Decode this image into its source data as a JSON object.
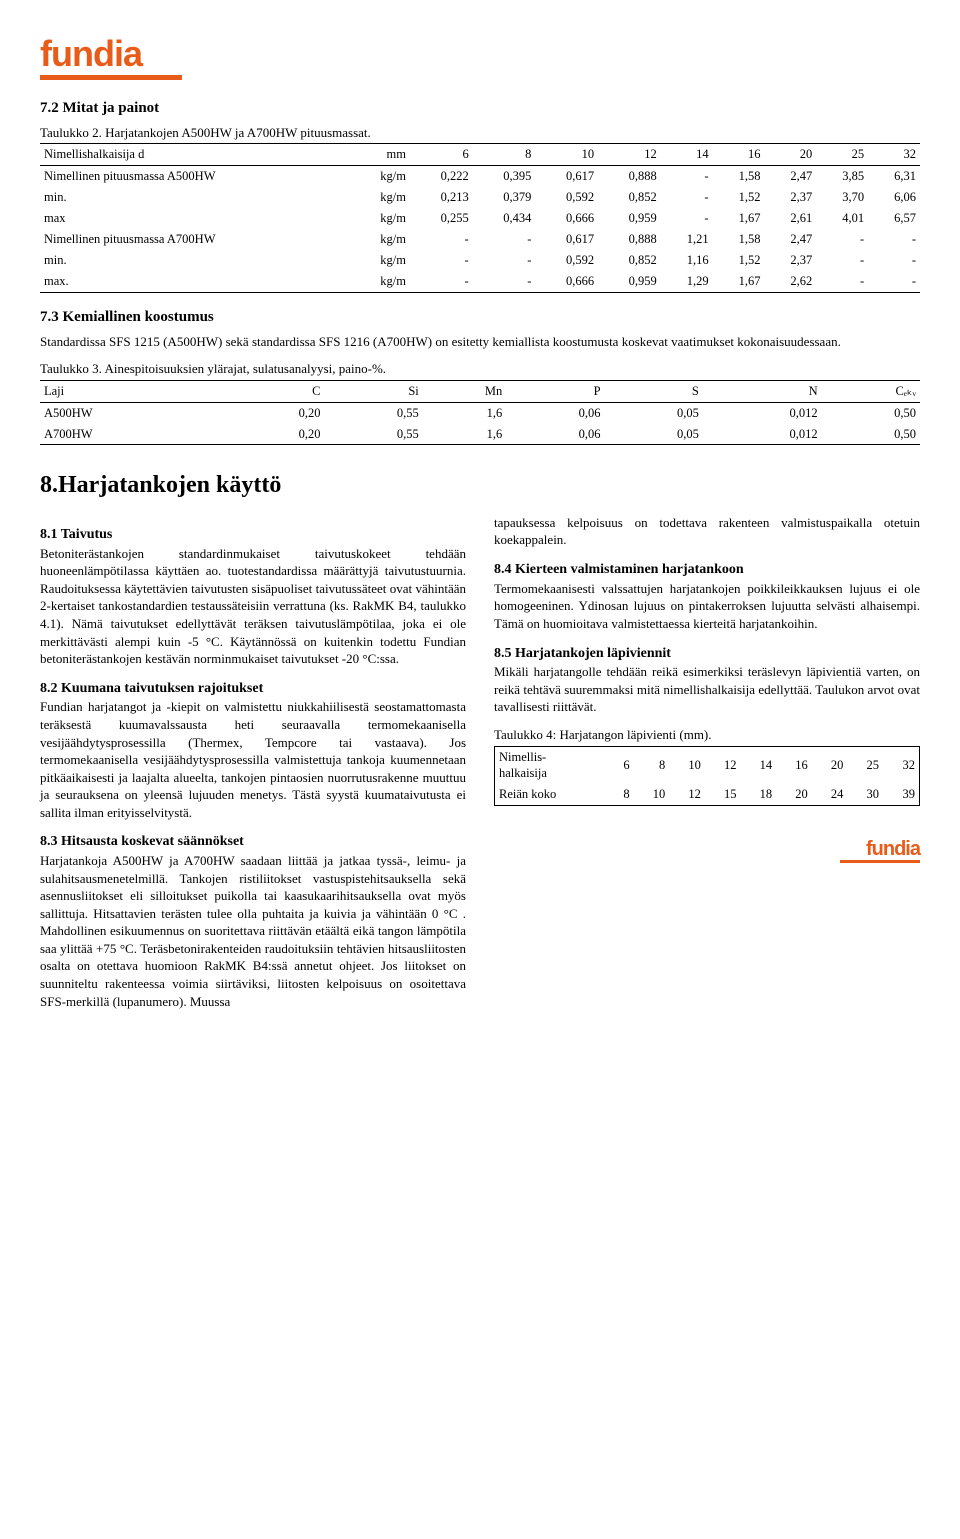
{
  "logo_text": "fundia",
  "sec72": {
    "title": "7.2 Mitat ja painot"
  },
  "table2": {
    "caption": "Taulukko 2. Harjatankojen A500HW ja A700HW pituusmassat.",
    "header": [
      "Nimellishalkaisija d",
      "mm",
      "6",
      "8",
      "10",
      "12",
      "14",
      "16",
      "20",
      "25",
      "32"
    ],
    "rows": [
      [
        "Nimellinen pituusmassa A500HW",
        "kg/m",
        "0,222",
        "0,395",
        "0,617",
        "0,888",
        "-",
        "1,58",
        "2,47",
        "3,85",
        "6,31"
      ],
      [
        "min.",
        "kg/m",
        "0,213",
        "0,379",
        "0,592",
        "0,852",
        "-",
        "1,52",
        "2,37",
        "3,70",
        "6,06"
      ],
      [
        "max",
        "kg/m",
        "0,255",
        "0,434",
        "0,666",
        "0,959",
        "-",
        "1,67",
        "2,61",
        "4,01",
        "6,57"
      ],
      [
        "Nimellinen pituusmassa A700HW",
        "kg/m",
        "-",
        "-",
        "0,617",
        "0,888",
        "1,21",
        "1,58",
        "2,47",
        "-",
        "-"
      ],
      [
        "min.",
        "kg/m",
        "-",
        "-",
        "0,592",
        "0,852",
        "1,16",
        "1,52",
        "2,37",
        "-",
        "-"
      ],
      [
        "max.",
        "kg/m",
        "-",
        "-",
        "0,666",
        "0,959",
        "1,29",
        "1,67",
        "2,62",
        "-",
        "-"
      ]
    ]
  },
  "sec73": {
    "title": "7.3 Kemiallinen koostumus",
    "body": "Standardissa SFS 1215 (A500HW) sekä standardissa SFS 1216 (A700HW) on esitetty kemiallista koostumusta koskevat vaatimukset kokonaisuudessaan."
  },
  "table3": {
    "caption": "Taulukko 3. Ainespitoisuuksien ylärajat, sulatusanalyysi, paino-%.",
    "header": [
      "Laji",
      "C",
      "Si",
      "Mn",
      "P",
      "S",
      "N",
      "Cₑₖᵥ"
    ],
    "rows": [
      [
        "A500HW",
        "0,20",
        "0,55",
        "1,6",
        "0,06",
        "0,05",
        "0,012",
        "0,50"
      ],
      [
        "A700HW",
        "0,20",
        "0,55",
        "1,6",
        "0,06",
        "0,05",
        "0,012",
        "0,50"
      ]
    ]
  },
  "sec8": {
    "title": "8.Harjatankojen käyttö"
  },
  "sec81": {
    "title": "8.1 Taivutus",
    "body": "Betoniterästankojen standardinmukaiset taivutuskokeet tehdään huoneenlämpötilassa käyttäen ao. tuotestandardissa määrättyjä taivutustuurnia. Raudoituksessa käytettävien taivutusten sisäpuoliset taivutussäteet ovat vähintään 2-kertaiset tankostandardien testaussäteisiin verrattuna (ks. RakMK B4, taulukko 4.1). Nämä taivutukset edellyttävät teräksen taivutuslämpötilaa, joka ei ole merkittävästi alempi kuin -5 °C. Käytännössä on kuitenkin todettu Fundian betoniterästankojen kestävän norminmukaiset taivutukset -20 °C:ssa."
  },
  "sec82": {
    "title": "8.2 Kuumana taivutuksen rajoitukset",
    "body": "Fundian harjatangot ja -kiepit on valmistettu niukkahiilisestä seostamattomasta teräksestä kuumavalssausta heti seuraavalla termomekaanisella vesijäähdytysprosessilla (Thermex, Tempcore tai vastaava). Jos termomekaanisella vesijäähdytysprosessilla valmistettuja tankoja kuumennetaan pitkäaikaisesti ja laajalta alueelta, tankojen pintaosien nuorrutusrakenne muuttuu ja seurauksena on yleensä lujuuden menetys. Tästä syystä kuumataivutusta ei sallita ilman erityisselvitystä."
  },
  "sec83": {
    "title": "8.3 Hitsausta koskevat säännökset",
    "body": "Harjatankoja A500HW ja A700HW saadaan liittää ja jatkaa tyssä-, leimu- ja sulahitsausmenetelmillä. Tankojen ristiliitokset vastuspistehitsauksella sekä asennusliitokset eli silloitukset puikolla tai kaasukaarihitsauksella ovat myös sallittuja. Hitsattavien terästen tulee olla puhtaita ja kuivia ja vähintään 0 °C . Mahdollinen esikuumennus on suoritettava riittävän etäältä eikä tangon lämpötila saa ylittää +75 °C. Teräsbetonirakenteiden raudoituksiin tehtävien hitsausliitosten osalta on otettava huomioon RakMK B4:ssä annetut ohjeet. Jos liitokset on suunniteltu rakenteessa voimia siirtäviksi, liitosten kelpoisuus on osoitettava SFS-merkillä (lupanumero). Muussa"
  },
  "sec83b": {
    "body": "tapauksessa kelpoisuus on todettava rakenteen valmistuspaikalla otetuin koekappalein."
  },
  "sec84": {
    "title": "8.4 Kierteen valmistaminen harjatankoon",
    "body": "Termomekaanisesti valssattujen harjatankojen poikkileikkauksen lujuus ei ole homogeeninen. Ydinosan lujuus on pintakerroksen lujuutta selvästi alhaisempi. Tämä on huomioitava valmistettaessa kierteitä harjatankoihin."
  },
  "sec85": {
    "title": "8.5 Harjatankojen läpiviennit",
    "body": "Mikäli harjatangolle tehdään reikä esimerkiksi teräslevyn läpivientiä varten, on reikä tehtävä suuremmaksi mitä nimellishalkaisija edellyttää. Taulukon arvot ovat tavallisesti riittävät."
  },
  "table4": {
    "caption": "Taulukko 4: Harjatangon läpivienti (mm).",
    "header": [
      "Nimellis-halkaisija",
      "6",
      "8",
      "10",
      "12",
      "14",
      "16",
      "20",
      "25",
      "32"
    ],
    "rows": [
      [
        "Reiän koko",
        "8",
        "10",
        "12",
        "15",
        "18",
        "20",
        "24",
        "30",
        "39"
      ]
    ]
  }
}
